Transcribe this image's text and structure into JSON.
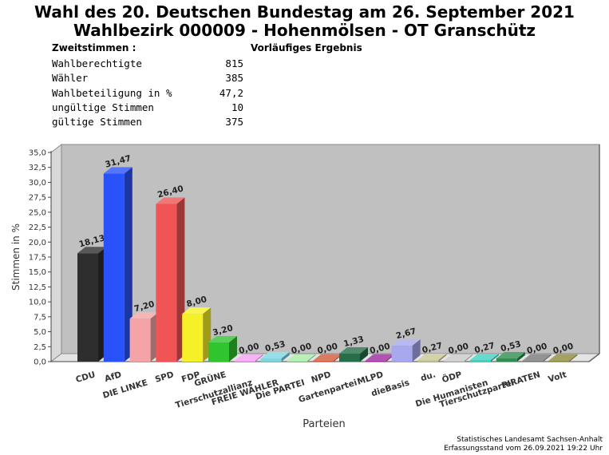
{
  "title_line1": "Wahl des 20. Deutschen Bundestag am 26. September 2021",
  "title_line2": "Wahlbezirk 000009 - Hohenmölsen - OT Granschütz",
  "stats_heading": "Zweitstimmen :",
  "result_heading": "Vorläufiges Ergebnis",
  "stats": [
    {
      "label": "Wahlberechtigte",
      "value": "815"
    },
    {
      "label": "Wähler",
      "value": "385"
    },
    {
      "label": "Wahlbeteiligung in %",
      "value": "47,2"
    },
    {
      "label": "ungültige Stimmen",
      "value": "10"
    },
    {
      "label": "gültige Stimmen",
      "value": "375"
    }
  ],
  "footer_line1": "Statistisches Landesamt Sachsen-Anhalt",
  "footer_line2": "Erfassungsstand vom 26.09.2021 19:22 Uhr",
  "chart_data": {
    "type": "bar",
    "xlabel": "Parteien",
    "ylabel": "Stimmen in %",
    "ylim": [
      0,
      35
    ],
    "yticks": [
      "0,0",
      "2,5",
      "5,0",
      "7,5",
      "10,0",
      "12,5",
      "15,0",
      "17,5",
      "20,0",
      "22,5",
      "25,0",
      "27,5",
      "30,0",
      "32,5",
      "35,0"
    ],
    "grid": false,
    "categories": [
      "CDU",
      "AfD",
      "DIE LINKE",
      "SPD",
      "FDP",
      "GRÜNE",
      "Tierschutzallianz",
      "FREIE WÄHLER",
      "Die PARTEI",
      "NPD",
      "Gartenpartei",
      "MLPD",
      "dieBasis",
      "du.",
      "ÖDP",
      "Die Humanisten",
      "Tierschutzpartei",
      "PIRATEN",
      "Volt"
    ],
    "values": [
      18.13,
      31.47,
      7.2,
      26.4,
      8.0,
      3.2,
      0.0,
      0.53,
      0.0,
      0.0,
      1.33,
      0.0,
      2.67,
      0.27,
      0.0,
      0.27,
      0.53,
      0.0,
      0.0
    ],
    "value_labels": [
      "18,13",
      "31,47",
      "7,20",
      "26,40",
      "8,00",
      "3,20",
      "0,00",
      "0,53",
      "0,00",
      "0,00",
      "1,33",
      "0,00",
      "2,67",
      "0,27",
      "0,00",
      "0,27",
      "0,53",
      "0,00",
      "0,00"
    ],
    "colors": [
      "#2e2e2e",
      "#2a52fb",
      "#f4a4a6",
      "#f05454",
      "#f5f028",
      "#30c42e",
      "#f3a2f3",
      "#7ed6e2",
      "#a8eca8",
      "#d05a3c",
      "#246e4a",
      "#9b2a9b",
      "#a8a8ee",
      "#c8c896",
      "#c8c8c8",
      "#40d2c0",
      "#2e8e50",
      "#787878",
      "#8c8a3c"
    ]
  }
}
